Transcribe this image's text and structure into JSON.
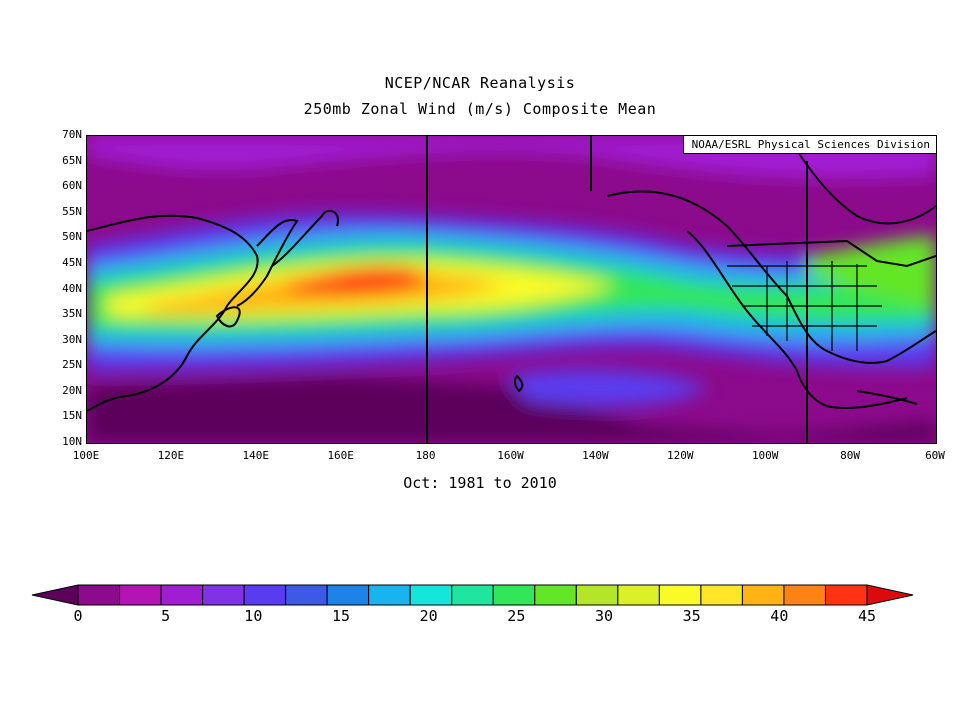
{
  "title_line1": "NCEP/NCAR Reanalysis",
  "title_line2": "250mb Zonal Wind (m/s) Composite Mean",
  "credit": "NOAA/ESRL Physical Sciences Division",
  "period": "Oct: 1981 to 2010",
  "lat_labels": [
    "70N",
    "65N",
    "60N",
    "55N",
    "50N",
    "45N",
    "40N",
    "35N",
    "30N",
    "25N",
    "20N",
    "15N",
    "10N"
  ],
  "lon_labels": [
    "100E",
    "120E",
    "140E",
    "160E",
    "180",
    "160W",
    "140W",
    "120W",
    "100W",
    "80W",
    "60W"
  ],
  "colorbar": {
    "labels": [
      "0",
      "5",
      "10",
      "15",
      "20",
      "25",
      "30",
      "35",
      "40",
      "45"
    ],
    "colors": [
      "#5b005b",
      "#8c0a8c",
      "#b414b4",
      "#a01ed2",
      "#8232e6",
      "#5a3cf0",
      "#3c5ae6",
      "#1e82e6",
      "#19b4ee",
      "#14e6dc",
      "#1ee6a0",
      "#32e65a",
      "#64e628",
      "#b4e628",
      "#dcf028",
      "#fafa28",
      "#ffe628",
      "#ffb414",
      "#ff8214",
      "#ff3214",
      "#dc0a0a"
    ]
  },
  "map": {
    "lon_range": [
      100,
      300
    ],
    "lat_range": [
      10,
      70
    ],
    "field": "250mb Zonal Wind (m/s)"
  }
}
